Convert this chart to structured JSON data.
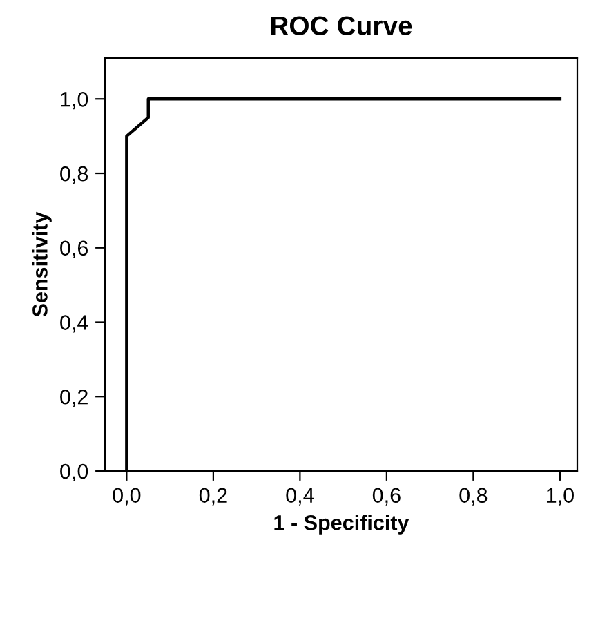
{
  "chart_data": {
    "type": "line",
    "title": "ROC Curve",
    "xlabel": "1 - Specificity",
    "ylabel": "Sensitivity",
    "series": [
      {
        "color": "#000000",
        "x": [
          0.0,
          0.0,
          0.05,
          0.05,
          1.0
        ],
        "values": [
          0.0,
          0.9,
          0.95,
          1.0,
          1.0
        ]
      }
    ],
    "xlim": [
      -0.05,
      1.04
    ],
    "ylim": [
      0,
      1.11
    ],
    "xticks": [
      {
        "value": 0,
        "label": "0,0"
      },
      {
        "value": 0.2,
        "label": "0,2"
      },
      {
        "value": 0.4,
        "label": "0,4"
      },
      {
        "value": 0.6,
        "label": "0,6"
      },
      {
        "value": 0.8,
        "label": "0,8"
      },
      {
        "value": 1.0,
        "label": "1,0"
      }
    ],
    "yticks": [
      {
        "value": 0,
        "label": "0,0"
      },
      {
        "value": 0.2,
        "label": "0,2"
      },
      {
        "value": 0.4,
        "label": "0,4"
      },
      {
        "value": 0.6,
        "label": "0,6"
      },
      {
        "value": 0.8,
        "label": "0,8"
      },
      {
        "value": 1.0,
        "label": "1,0"
      }
    ],
    "grid": false,
    "marker": "none",
    "line_style": "solid"
  }
}
